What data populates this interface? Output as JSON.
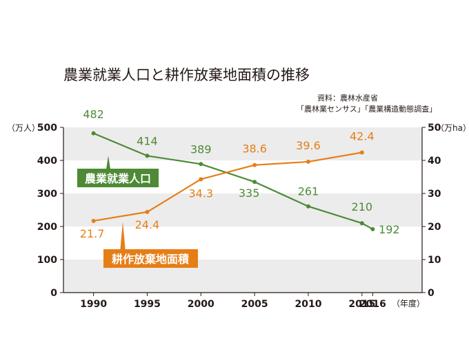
{
  "chart_data": {
    "type": "line",
    "title": "農業就業人口と耕作放棄地面積の推移",
    "source_lines": [
      "資料：農林水産省",
      "「農林業センサス」「農業構造動態調査」"
    ],
    "x": [
      1990,
      1995,
      2000,
      2005,
      2010,
      2015,
      2016
    ],
    "x_tick_labels": [
      "1990",
      "1995",
      "2000",
      "2005",
      "2010",
      "2015",
      "2016"
    ],
    "xlabel": "（年度）",
    "left_axis": {
      "label": "（万人）",
      "ylim": [
        0,
        500
      ],
      "ticks": [
        "0",
        "100",
        "200",
        "300",
        "400",
        "500"
      ]
    },
    "right_axis": {
      "label": "（万ha）",
      "ylim": [
        0,
        50
      ],
      "ticks": [
        "0",
        "10",
        "20",
        "30",
        "40",
        "50"
      ]
    },
    "grid": "alternating horizontal bands",
    "series": [
      {
        "name": "農業就業人口",
        "axis": "left",
        "color": "#4e8a35",
        "x": [
          1990,
          1995,
          2000,
          2005,
          2010,
          2015,
          2016
        ],
        "values": [
          482,
          414,
          389,
          335,
          261,
          210,
          192
        ],
        "labels": [
          "482",
          "414",
          "389",
          "335",
          "261",
          "210",
          "192"
        ]
      },
      {
        "name": "耕作放棄地面積",
        "axis": "right",
        "color": "#e67e16",
        "x": [
          1990,
          1995,
          2000,
          2005,
          2010,
          2015
        ],
        "values": [
          21.7,
          24.4,
          34.3,
          38.6,
          39.6,
          42.4
        ],
        "labels": [
          "21.7",
          "24.4",
          "34.3",
          "38.6",
          "39.6",
          "42.4"
        ]
      }
    ]
  }
}
